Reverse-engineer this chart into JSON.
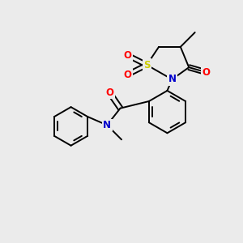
{
  "bg_color": "#ebebeb",
  "bond_color": "#000000",
  "atom_colors": {
    "N": "#0000cc",
    "O": "#ff0000",
    "S": "#cccc00"
  },
  "figsize": [
    3.0,
    3.0
  ],
  "dpi": 100,
  "lw": 1.4
}
